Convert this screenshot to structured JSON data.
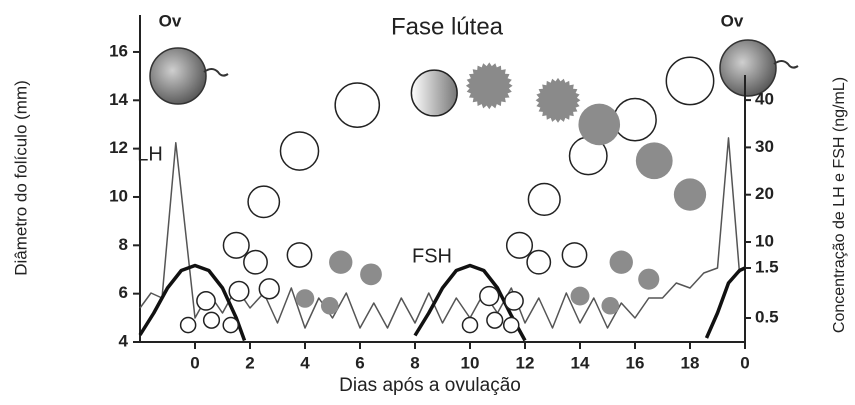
{
  "chart_data": {
    "type": "line",
    "title": "Fase lútea",
    "xlabel": "Dias após a ovulação",
    "ylabel": "Diâmetro do folículo (mm)",
    "y2label": "Concentração de LH e FSH (ng/mL)",
    "annotations": [
      "Ov",
      "Ov"
    ],
    "xlim": [
      -2,
      20
    ],
    "xticks": [
      0,
      2,
      4,
      6,
      8,
      10,
      12,
      14,
      16,
      18,
      {
        "value": 20,
        "label": "0"
      }
    ],
    "ylim": [
      4,
      17.5
    ],
    "yticks": [
      4,
      6,
      8,
      10,
      12,
      14,
      16
    ],
    "y2lim": [
      0,
      40
    ],
    "y2ticks": [
      0.5,
      1.5,
      10,
      20,
      30,
      40
    ],
    "series": [
      {
        "name": "LH",
        "axis": "y2",
        "marker": "thin-line",
        "color": "#555555",
        "x": [
          -2,
          -1.6,
          -1.2,
          -0.7,
          0,
          0.5,
          1,
          1.5,
          2,
          2.5,
          3,
          3.5,
          4,
          4.5,
          5,
          5.5,
          6,
          6.5,
          7,
          7.5,
          8,
          8.5,
          9,
          9.5,
          10,
          10.5,
          11,
          11.5,
          12,
          12.5,
          13,
          13.5,
          14,
          14.5,
          15,
          15.5,
          16,
          16.5,
          17,
          17.5,
          18,
          18.5,
          19,
          19.4,
          19.8
        ],
        "values": [
          0.7,
          1.0,
          0.9,
          31,
          0.5,
          1.0,
          0.6,
          1.1,
          0.7,
          1.0,
          0.4,
          1.1,
          0.3,
          0.9,
          0.5,
          1.0,
          0.3,
          0.8,
          0.3,
          0.9,
          0.4,
          1.0,
          0.4,
          0.9,
          0.5,
          1.0,
          0.6,
          1.1,
          0.4,
          0.9,
          0.3,
          1.0,
          0.4,
          0.9,
          0.3,
          0.8,
          0.5,
          0.9,
          0.9,
          1.2,
          1.1,
          1.4,
          1.5,
          32,
          1.4
        ]
      },
      {
        "name": "FSH",
        "axis": "y2",
        "marker": "thick-line",
        "color": "#111111",
        "x": [
          -2,
          -1.5,
          -1,
          -0.5,
          0,
          0.5,
          1,
          1.5,
          1.8,
          5,
          8,
          8.5,
          9,
          9.5,
          10,
          10.5,
          11,
          11.5,
          12,
          15,
          18.6,
          19,
          19.4,
          19.8,
          20
        ],
        "values": [
          0.16,
          0.6,
          1.1,
          1.45,
          1.55,
          1.45,
          1.1,
          0.5,
          0.05,
          null,
          0.15,
          0.6,
          1.1,
          1.45,
          1.55,
          1.45,
          1.1,
          0.55,
          0.05,
          null,
          0.1,
          0.6,
          1.2,
          1.45,
          1.5
        ]
      },
      {
        "marker": "circle",
        "color": "#ffffff",
        "x": [
          1.5,
          2.5,
          3.8,
          5.9,
          3.8,
          2.2,
          11.8,
          12.7,
          14.3,
          16.0,
          18.0,
          13.8,
          12.5,
          -0.25,
          0.6,
          0.4,
          1.3,
          1.6,
          2.7,
          10,
          10.9,
          10.7,
          11.5,
          11.6
        ],
        "values": [
          8.0,
          9.8,
          11.9,
          13.8,
          7.6,
          7.3,
          8.0,
          9.9,
          11.7,
          13.2,
          14.8,
          7.6,
          7.3,
          4.7,
          4.9,
          5.7,
          4.7,
          6.1,
          6.2,
          4.7,
          4.9,
          5.9,
          4.7,
          5.7
        ]
      },
      {
        "marker": "gradient",
        "color": "#777777",
        "x": [
          8.7
        ],
        "values": [
          14.3
        ]
      },
      {
        "marker": "spiky",
        "color": "#8a8a8a",
        "x": [
          10.7,
          13.2
        ],
        "values": [
          14.6,
          14.0
        ]
      },
      {
        "marker": "circle",
        "color": "#8c8c8c",
        "x": [
          14.7,
          16.7,
          18.0,
          5.3,
          6.4,
          15.5,
          16.5,
          4.0,
          4.9,
          14.0,
          15.1
        ],
        "values": [
          13.0,
          11.5,
          10.1,
          7.3,
          6.8,
          7.3,
          6.6,
          5.8,
          5.5,
          5.9,
          5.5
        ]
      }
    ]
  }
}
